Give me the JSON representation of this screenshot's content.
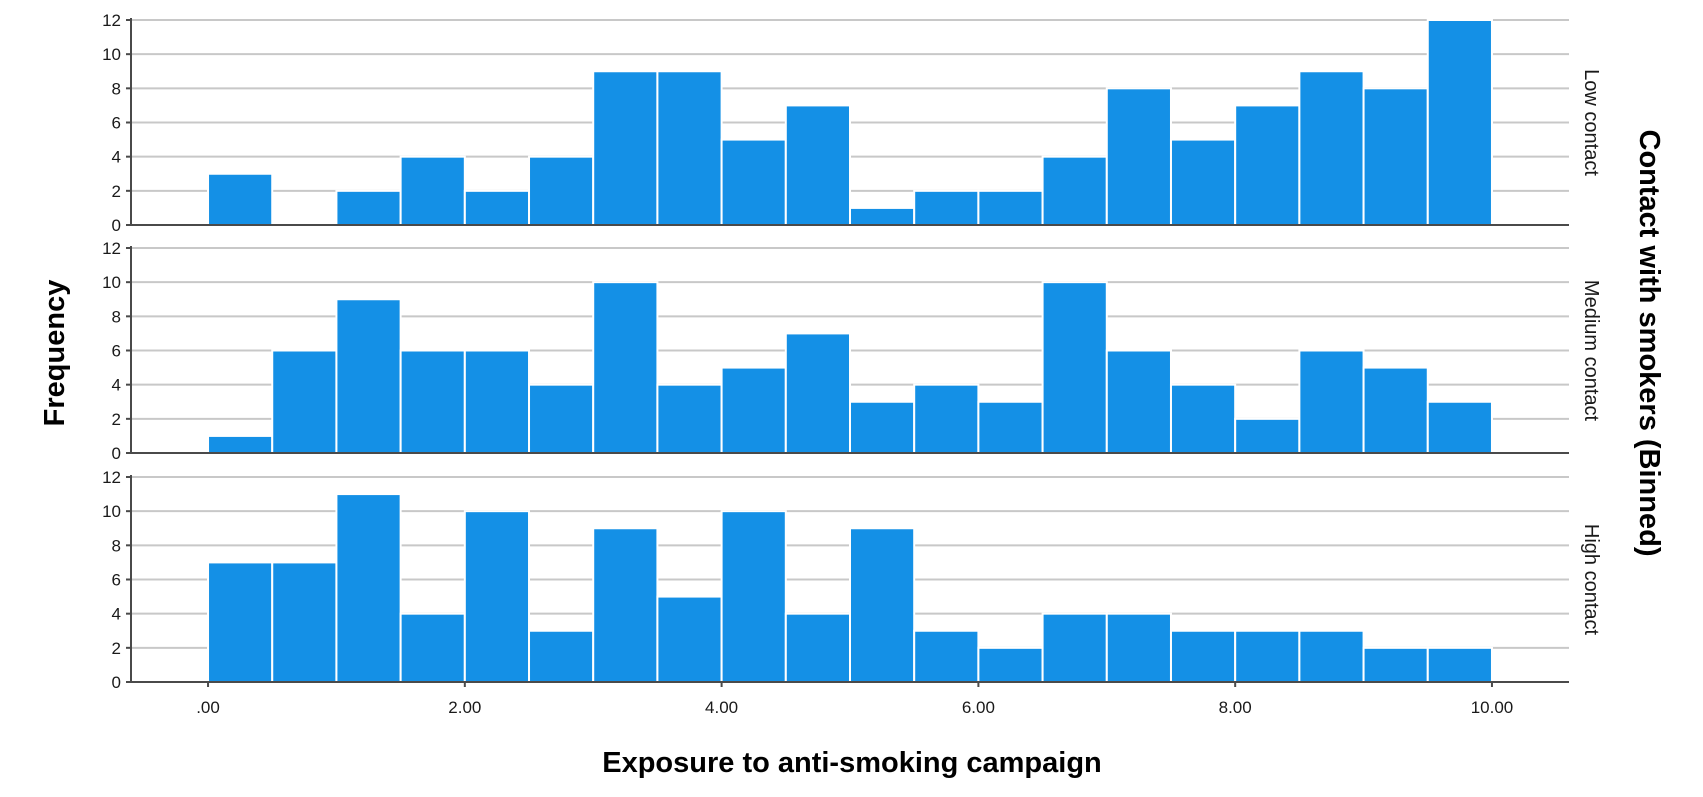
{
  "chart_data": {
    "type": "bar",
    "subtype": "faceted-histogram",
    "xlabel": "Exposure to anti-smoking campaign",
    "ylabel": "Frequency",
    "facet_title": "Contact with smokers (Binned)",
    "bin_width": 0.5,
    "bin_starts": [
      0.0,
      0.5,
      1.0,
      1.5,
      2.0,
      2.5,
      3.0,
      3.5,
      4.0,
      4.5,
      5.0,
      5.5,
      6.0,
      6.5,
      7.0,
      7.5,
      8.0,
      8.5,
      9.0,
      9.5
    ],
    "xlim": [
      -0.6,
      10.6
    ],
    "ylim": [
      0,
      12
    ],
    "x_ticks": [
      0,
      2,
      4,
      6,
      8,
      10
    ],
    "x_tick_labels": [
      ".00",
      "2.00",
      "4.00",
      "6.00",
      "8.00",
      "10.00"
    ],
    "y_ticks": [
      0,
      2,
      4,
      6,
      8,
      10,
      12
    ],
    "y_tick_labels": [
      "0",
      "2",
      "4",
      "6",
      "8",
      "10",
      "12"
    ],
    "grid": true,
    "bar_color": "#1490e6",
    "panels": [
      {
        "label": "Low contact",
        "values": [
          3,
          0,
          2,
          4,
          2,
          4,
          9,
          9,
          5,
          7,
          1,
          2,
          2,
          4,
          8,
          5,
          7,
          9,
          8,
          12
        ]
      },
      {
        "label": "Medium contact",
        "values": [
          1,
          6,
          9,
          6,
          6,
          4,
          10,
          4,
          5,
          7,
          3,
          4,
          3,
          10,
          6,
          4,
          2,
          6,
          5,
          3
        ]
      },
      {
        "label": "High contact",
        "values": [
          7,
          7,
          11,
          4,
          10,
          3,
          9,
          5,
          10,
          4,
          9,
          3,
          2,
          4,
          4,
          3,
          3,
          3,
          2,
          2
        ]
      }
    ]
  }
}
